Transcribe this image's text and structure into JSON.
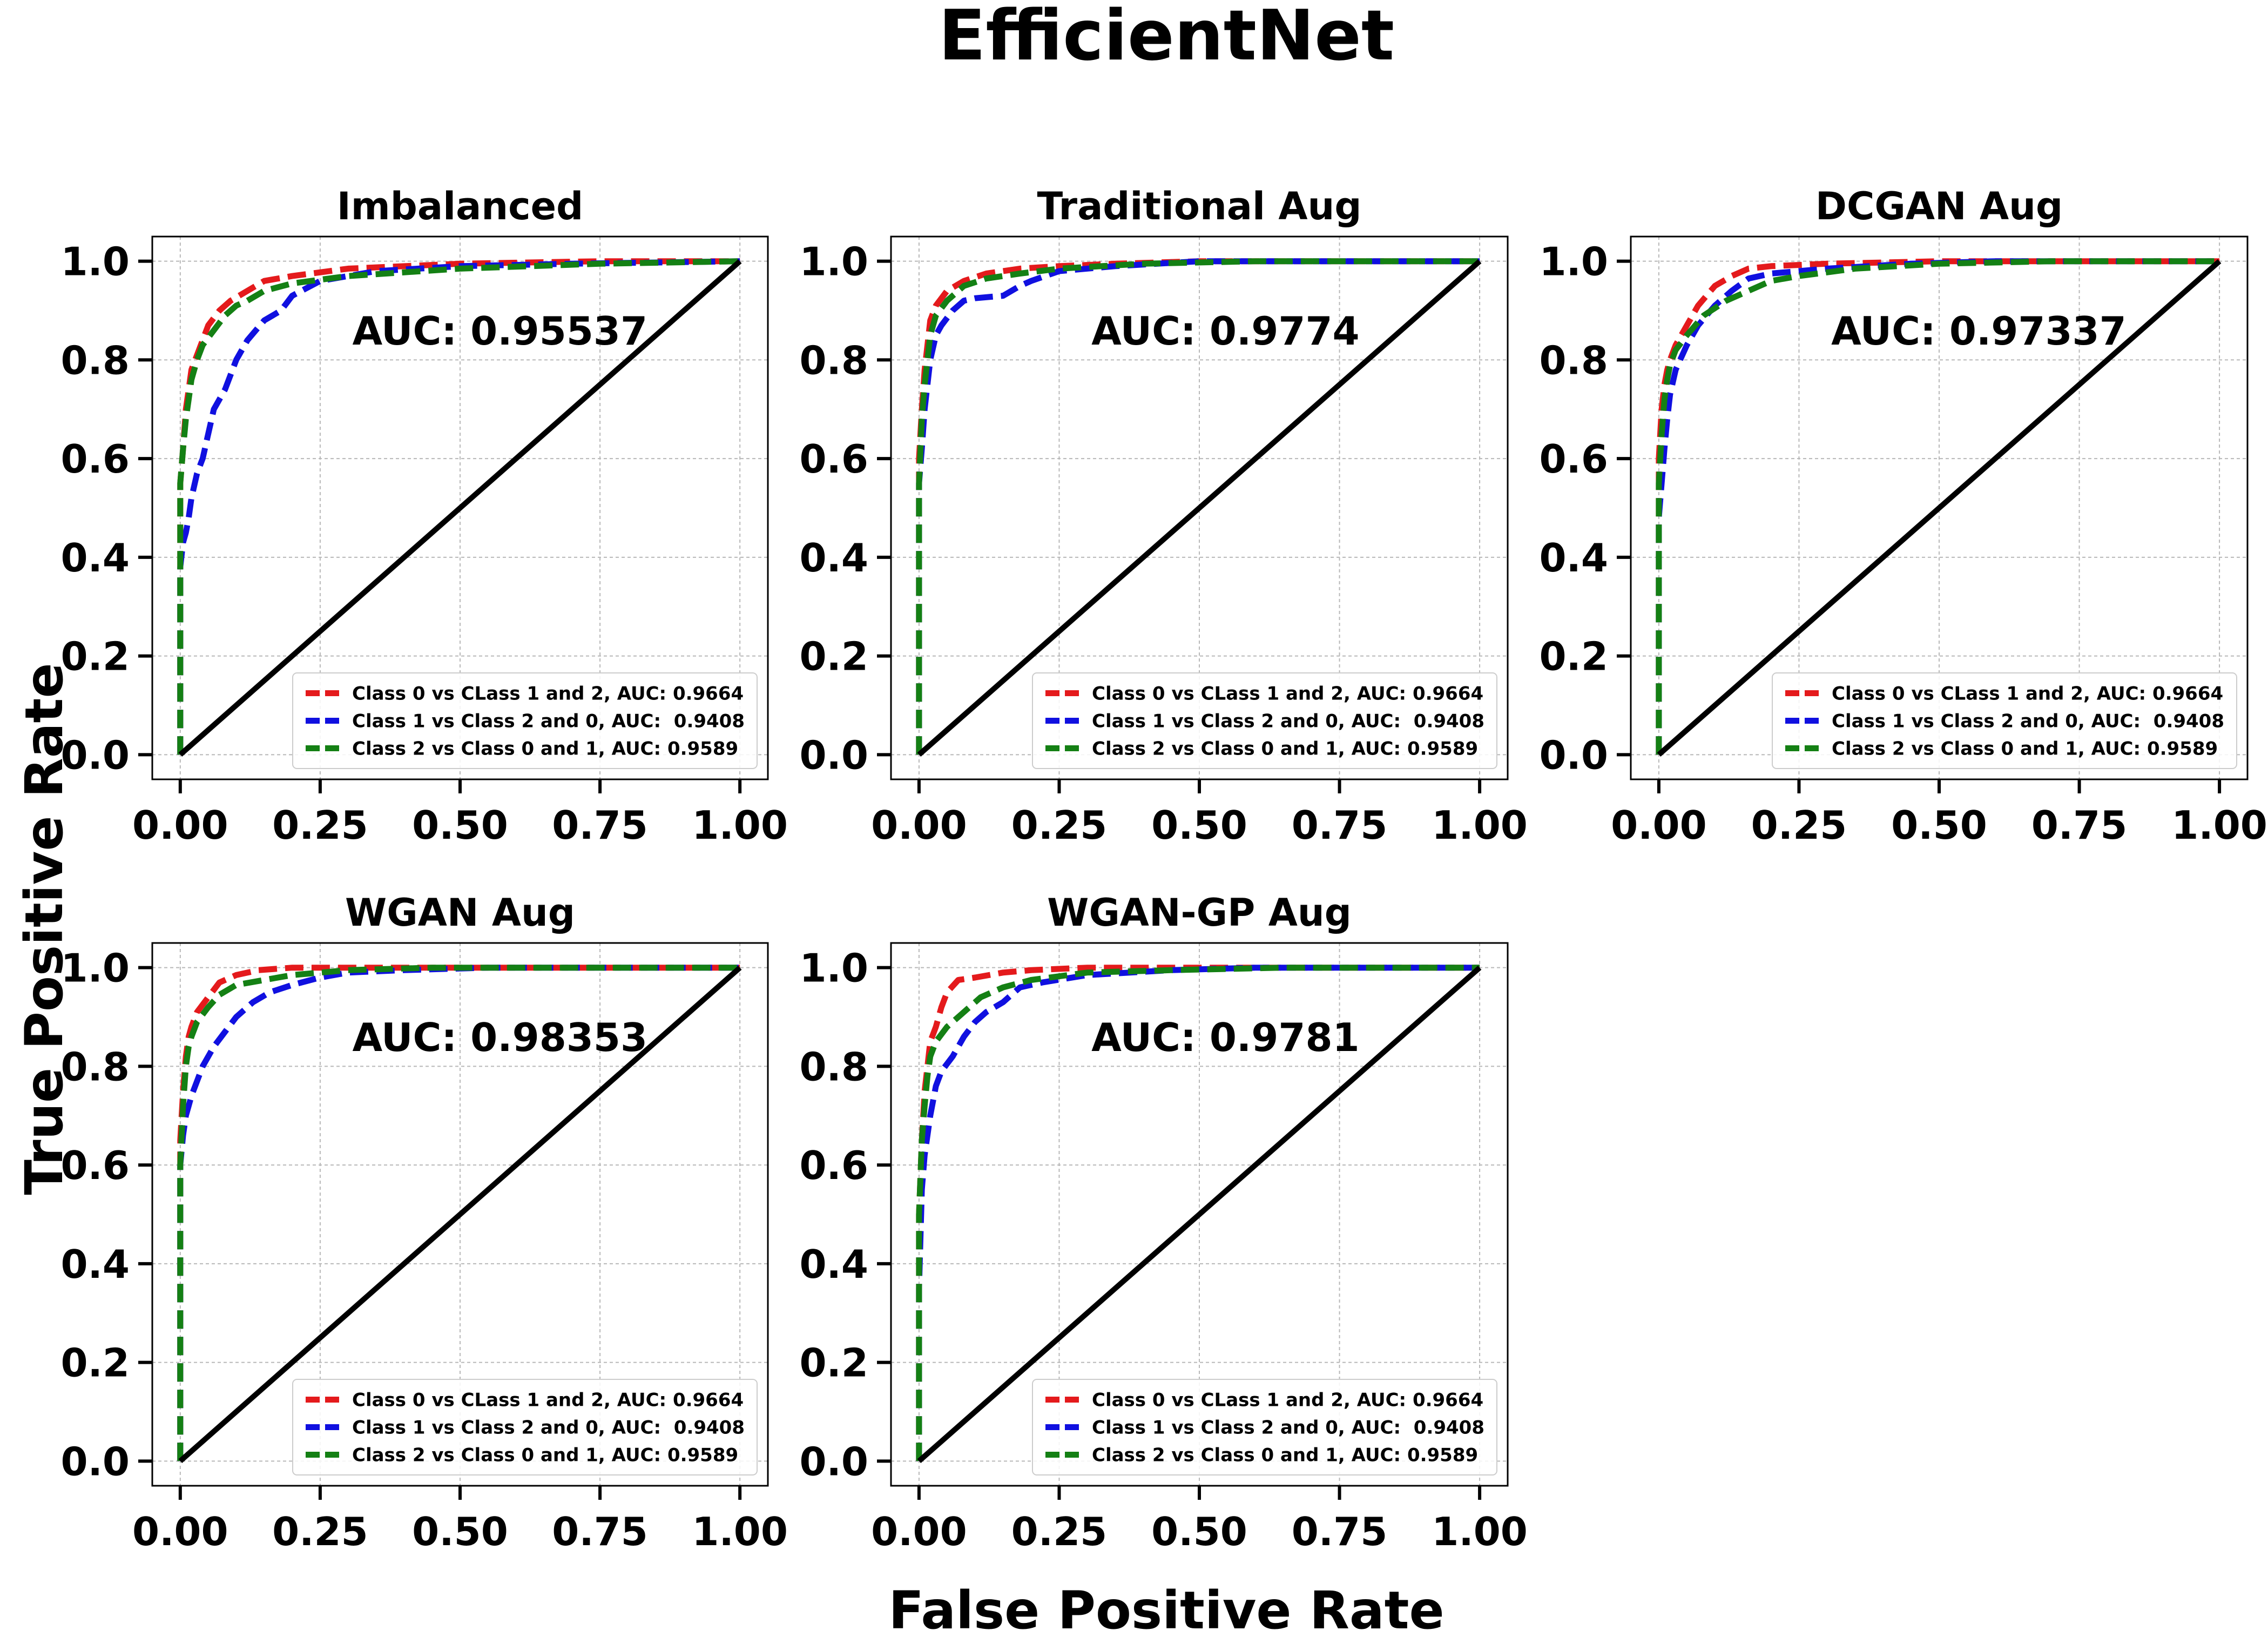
{
  "figure": {
    "title": "EfficientNet",
    "xlabel": "False Positive Rate",
    "ylabel": "True Positive Rate"
  },
  "chart_data": [
    {
      "type": "line",
      "title": "Imbalanced",
      "xlim": [
        -0.05,
        1.05
      ],
      "ylim": [
        -0.05,
        1.05
      ],
      "xticks": [
        "0.00",
        "0.25",
        "0.50",
        "0.75",
        "1.00"
      ],
      "yticks": [
        "0.0",
        "0.2",
        "0.4",
        "0.6",
        "0.8",
        "1.0"
      ],
      "grid": true,
      "annotation": "AUC: 0.95537",
      "legend_position": "lower-right",
      "series": [
        {
          "name": "Class 0 vs CLass 1 and 2, AUC: 0.9664",
          "color": "#e41a1c",
          "dash": "dashed",
          "x": [
            0,
            0,
            0.005,
            0.01,
            0.015,
            0.02,
            0.03,
            0.04,
            0.05,
            0.07,
            0.09,
            0.12,
            0.15,
            0.2,
            0.3,
            0.5,
            0.75,
            1.0
          ],
          "y": [
            0,
            0.55,
            0.62,
            0.7,
            0.74,
            0.78,
            0.81,
            0.84,
            0.87,
            0.9,
            0.92,
            0.94,
            0.96,
            0.97,
            0.985,
            0.995,
            1.0,
            1.0
          ]
        },
        {
          "name": "Class 1 vs Class 2 and 0, AUC:  0.9408",
          "color": "#1010e0",
          "dash": "dashed",
          "x": [
            0,
            0,
            0.005,
            0.01,
            0.015,
            0.02,
            0.03,
            0.04,
            0.05,
            0.06,
            0.08,
            0.1,
            0.12,
            0.15,
            0.18,
            0.2,
            0.25,
            0.35,
            0.5,
            0.7,
            1.0
          ],
          "y": [
            0,
            0.38,
            0.43,
            0.45,
            0.48,
            0.52,
            0.57,
            0.6,
            0.65,
            0.7,
            0.74,
            0.8,
            0.84,
            0.88,
            0.9,
            0.93,
            0.96,
            0.98,
            0.99,
            0.995,
            1.0
          ]
        },
        {
          "name": "Class 2 vs Class 0 and 1, AUC: 0.9589",
          "color": "#148014",
          "dash": "dashed",
          "x": [
            0,
            0,
            0.005,
            0.01,
            0.015,
            0.02,
            0.03,
            0.04,
            0.06,
            0.08,
            0.1,
            0.12,
            0.15,
            0.2,
            0.3,
            0.5,
            0.75,
            1.0
          ],
          "y": [
            0,
            0.55,
            0.62,
            0.68,
            0.72,
            0.76,
            0.8,
            0.83,
            0.86,
            0.89,
            0.91,
            0.92,
            0.94,
            0.955,
            0.97,
            0.985,
            0.995,
            1.0
          ]
        },
        {
          "name": "",
          "color": "#000000",
          "dash": "solid",
          "x": [
            0,
            1
          ],
          "y": [
            0,
            1
          ]
        }
      ]
    },
    {
      "type": "line",
      "title": "Traditional Aug",
      "xlim": [
        -0.05,
        1.05
      ],
      "ylim": [
        -0.05,
        1.05
      ],
      "xticks": [
        "0.00",
        "0.25",
        "0.50",
        "0.75",
        "1.00"
      ],
      "yticks": [
        "0.0",
        "0.2",
        "0.4",
        "0.6",
        "0.8",
        "1.0"
      ],
      "grid": true,
      "annotation": "AUC: 0.9774",
      "legend_position": "lower-right",
      "series": [
        {
          "name": "Class 0 vs CLass 1 and 2, AUC: 0.9664",
          "color": "#e41a1c",
          "dash": "dashed",
          "x": [
            0,
            0,
            0.005,
            0.01,
            0.015,
            0.02,
            0.03,
            0.05,
            0.08,
            0.12,
            0.18,
            0.25,
            0.35,
            0.5,
            1.0
          ],
          "y": [
            0,
            0.6,
            0.7,
            0.78,
            0.83,
            0.88,
            0.91,
            0.94,
            0.96,
            0.975,
            0.985,
            0.99,
            0.995,
            1.0,
            1.0
          ]
        },
        {
          "name": "Class 1 vs Class 2 and 0, AUC:  0.9408",
          "color": "#1010e0",
          "dash": "dashed",
          "x": [
            0,
            0,
            0.005,
            0.01,
            0.015,
            0.02,
            0.03,
            0.04,
            0.06,
            0.08,
            0.1,
            0.15,
            0.18,
            0.2,
            0.25,
            0.35,
            0.5,
            1.0
          ],
          "y": [
            0,
            0.55,
            0.62,
            0.7,
            0.75,
            0.8,
            0.85,
            0.87,
            0.9,
            0.92,
            0.925,
            0.93,
            0.95,
            0.96,
            0.98,
            0.99,
            1.0,
            1.0
          ]
        },
        {
          "name": "Class 2 vs Class 0 and 1, AUC: 0.9589",
          "color": "#148014",
          "dash": "dashed",
          "x": [
            0,
            0,
            0.005,
            0.01,
            0.015,
            0.02,
            0.03,
            0.05,
            0.08,
            0.12,
            0.18,
            0.25,
            0.4,
            0.6,
            1.0
          ],
          "y": [
            0,
            0.55,
            0.68,
            0.75,
            0.8,
            0.85,
            0.89,
            0.92,
            0.95,
            0.965,
            0.975,
            0.985,
            0.995,
            1.0,
            1.0
          ]
        },
        {
          "name": "",
          "color": "#000000",
          "dash": "solid",
          "x": [
            0,
            1
          ],
          "y": [
            0,
            1
          ]
        }
      ]
    },
    {
      "type": "line",
      "title": "DCGAN Aug",
      "xlim": [
        -0.05,
        1.05
      ],
      "ylim": [
        -0.05,
        1.05
      ],
      "xticks": [
        "0.00",
        "0.25",
        "0.50",
        "0.75",
        "1.00"
      ],
      "yticks": [
        "0.0",
        "0.2",
        "0.4",
        "0.6",
        "0.8",
        "1.0"
      ],
      "grid": true,
      "annotation": "AUC: 0.97337",
      "legend_position": "lower-right",
      "series": [
        {
          "name": "Class 0 vs CLass 1 and 2, AUC: 0.9664",
          "color": "#e41a1c",
          "dash": "dashed",
          "x": [
            0,
            0,
            0.005,
            0.01,
            0.015,
            0.02,
            0.03,
            0.05,
            0.07,
            0.1,
            0.13,
            0.16,
            0.2,
            0.3,
            0.5,
            1.0
          ],
          "y": [
            0,
            0.6,
            0.7,
            0.75,
            0.78,
            0.8,
            0.83,
            0.87,
            0.91,
            0.95,
            0.97,
            0.985,
            0.99,
            0.995,
            1.0,
            1.0
          ]
        },
        {
          "name": "Class 1 vs Class 2 and 0, AUC:  0.9408",
          "color": "#1010e0",
          "dash": "dashed",
          "x": [
            0,
            0,
            0.005,
            0.01,
            0.015,
            0.02,
            0.03,
            0.05,
            0.07,
            0.1,
            0.13,
            0.16,
            0.2,
            0.3,
            0.45,
            0.6,
            1.0
          ],
          "y": [
            0,
            0.48,
            0.55,
            0.62,
            0.68,
            0.73,
            0.78,
            0.83,
            0.87,
            0.91,
            0.94,
            0.965,
            0.975,
            0.985,
            0.995,
            1.0,
            1.0
          ]
        },
        {
          "name": "Class 2 vs Class 0 and 1, AUC: 0.9589",
          "color": "#148014",
          "dash": "dashed",
          "x": [
            0,
            0,
            0.005,
            0.01,
            0.015,
            0.02,
            0.03,
            0.05,
            0.08,
            0.12,
            0.16,
            0.2,
            0.25,
            0.35,
            0.5,
            0.7,
            1.0
          ],
          "y": [
            0,
            0.55,
            0.65,
            0.72,
            0.76,
            0.79,
            0.82,
            0.85,
            0.89,
            0.92,
            0.94,
            0.96,
            0.97,
            0.985,
            0.995,
            1.0,
            1.0
          ]
        },
        {
          "name": "",
          "color": "#000000",
          "dash": "solid",
          "x": [
            0,
            1
          ],
          "y": [
            0,
            1
          ]
        }
      ]
    },
    {
      "type": "line",
      "title": "WGAN Aug",
      "xlim": [
        -0.05,
        1.05
      ],
      "ylim": [
        -0.05,
        1.05
      ],
      "xticks": [
        "0.00",
        "0.25",
        "0.50",
        "0.75",
        "1.00"
      ],
      "yticks": [
        "0.0",
        "0.2",
        "0.4",
        "0.6",
        "0.8",
        "1.0"
      ],
      "grid": true,
      "annotation": "AUC: 0.98353",
      "legend_position": "lower-right",
      "series": [
        {
          "name": "Class 0 vs CLass 1 and 2, AUC: 0.9664",
          "color": "#e41a1c",
          "dash": "dashed",
          "x": [
            0,
            0,
            0.005,
            0.01,
            0.015,
            0.02,
            0.03,
            0.05,
            0.07,
            0.1,
            0.14,
            0.2,
            0.3,
            0.5,
            1.0
          ],
          "y": [
            0,
            0.65,
            0.75,
            0.82,
            0.86,
            0.88,
            0.91,
            0.94,
            0.97,
            0.985,
            0.995,
            1.0,
            1.0,
            1.0,
            1.0
          ]
        },
        {
          "name": "Class 1 vs Class 2 and 0, AUC:  0.9408",
          "color": "#1010e0",
          "dash": "dashed",
          "x": [
            0,
            0,
            0.005,
            0.01,
            0.015,
            0.02,
            0.03,
            0.04,
            0.06,
            0.08,
            0.1,
            0.13,
            0.16,
            0.2,
            0.25,
            0.3,
            0.4,
            0.55,
            1.0
          ],
          "y": [
            0,
            0.6,
            0.66,
            0.7,
            0.72,
            0.74,
            0.77,
            0.8,
            0.84,
            0.87,
            0.9,
            0.93,
            0.95,
            0.965,
            0.98,
            0.99,
            0.995,
            1.0,
            1.0
          ]
        },
        {
          "name": "Class 2 vs Class 0 and 1, AUC: 0.9589",
          "color": "#148014",
          "dash": "dashed",
          "x": [
            0,
            0,
            0.005,
            0.01,
            0.015,
            0.02,
            0.03,
            0.05,
            0.07,
            0.1,
            0.15,
            0.2,
            0.3,
            0.45,
            0.6,
            1.0
          ],
          "y": [
            0,
            0.6,
            0.72,
            0.8,
            0.84,
            0.86,
            0.89,
            0.92,
            0.945,
            0.965,
            0.975,
            0.985,
            0.995,
            1.0,
            1.0,
            1.0
          ]
        },
        {
          "name": "",
          "color": "#000000",
          "dash": "solid",
          "x": [
            0,
            1
          ],
          "y": [
            0,
            1
          ]
        }
      ]
    },
    {
      "type": "line",
      "title": "WGAN-GP Aug",
      "xlim": [
        -0.05,
        1.05
      ],
      "ylim": [
        -0.05,
        1.05
      ],
      "xticks": [
        "0.00",
        "0.25",
        "0.50",
        "0.75",
        "1.00"
      ],
      "yticks": [
        "0.0",
        "0.2",
        "0.4",
        "0.6",
        "0.8",
        "1.0"
      ],
      "grid": true,
      "annotation": "AUC: 0.9781",
      "legend_position": "lower-right",
      "series": [
        {
          "name": "Class 0 vs CLass 1 and 2, AUC: 0.9664",
          "color": "#e41a1c",
          "dash": "dashed",
          "x": [
            0,
            0,
            0.005,
            0.01,
            0.015,
            0.02,
            0.03,
            0.04,
            0.05,
            0.07,
            0.1,
            0.15,
            0.2,
            0.3,
            0.5,
            1.0
          ],
          "y": [
            0,
            0.5,
            0.65,
            0.75,
            0.8,
            0.85,
            0.88,
            0.92,
            0.95,
            0.975,
            0.98,
            0.99,
            0.995,
            1.0,
            1.0,
            1.0
          ]
        },
        {
          "name": "Class 1 vs Class 2 and 0, AUC:  0.9408",
          "color": "#1010e0",
          "dash": "dashed",
          "x": [
            0,
            0,
            0.005,
            0.01,
            0.015,
            0.02,
            0.03,
            0.04,
            0.06,
            0.08,
            0.1,
            0.12,
            0.15,
            0.18,
            0.22,
            0.3,
            0.45,
            0.6,
            1.0
          ],
          "y": [
            0,
            0.35,
            0.55,
            0.62,
            0.66,
            0.7,
            0.76,
            0.79,
            0.82,
            0.86,
            0.89,
            0.91,
            0.93,
            0.96,
            0.97,
            0.985,
            0.995,
            1.0,
            1.0
          ]
        },
        {
          "name": "Class 2 vs Class 0 and 1, AUC: 0.9589",
          "color": "#148014",
          "dash": "dashed",
          "x": [
            0,
            0,
            0.005,
            0.01,
            0.015,
            0.02,
            0.03,
            0.05,
            0.08,
            0.11,
            0.15,
            0.2,
            0.3,
            0.45,
            0.65,
            1.0
          ],
          "y": [
            0,
            0.5,
            0.65,
            0.72,
            0.78,
            0.82,
            0.85,
            0.88,
            0.91,
            0.94,
            0.96,
            0.975,
            0.99,
            0.995,
            1.0,
            1.0
          ]
        },
        {
          "name": "",
          "color": "#000000",
          "dash": "solid",
          "x": [
            0,
            1
          ],
          "y": [
            0,
            1
          ]
        }
      ]
    }
  ]
}
